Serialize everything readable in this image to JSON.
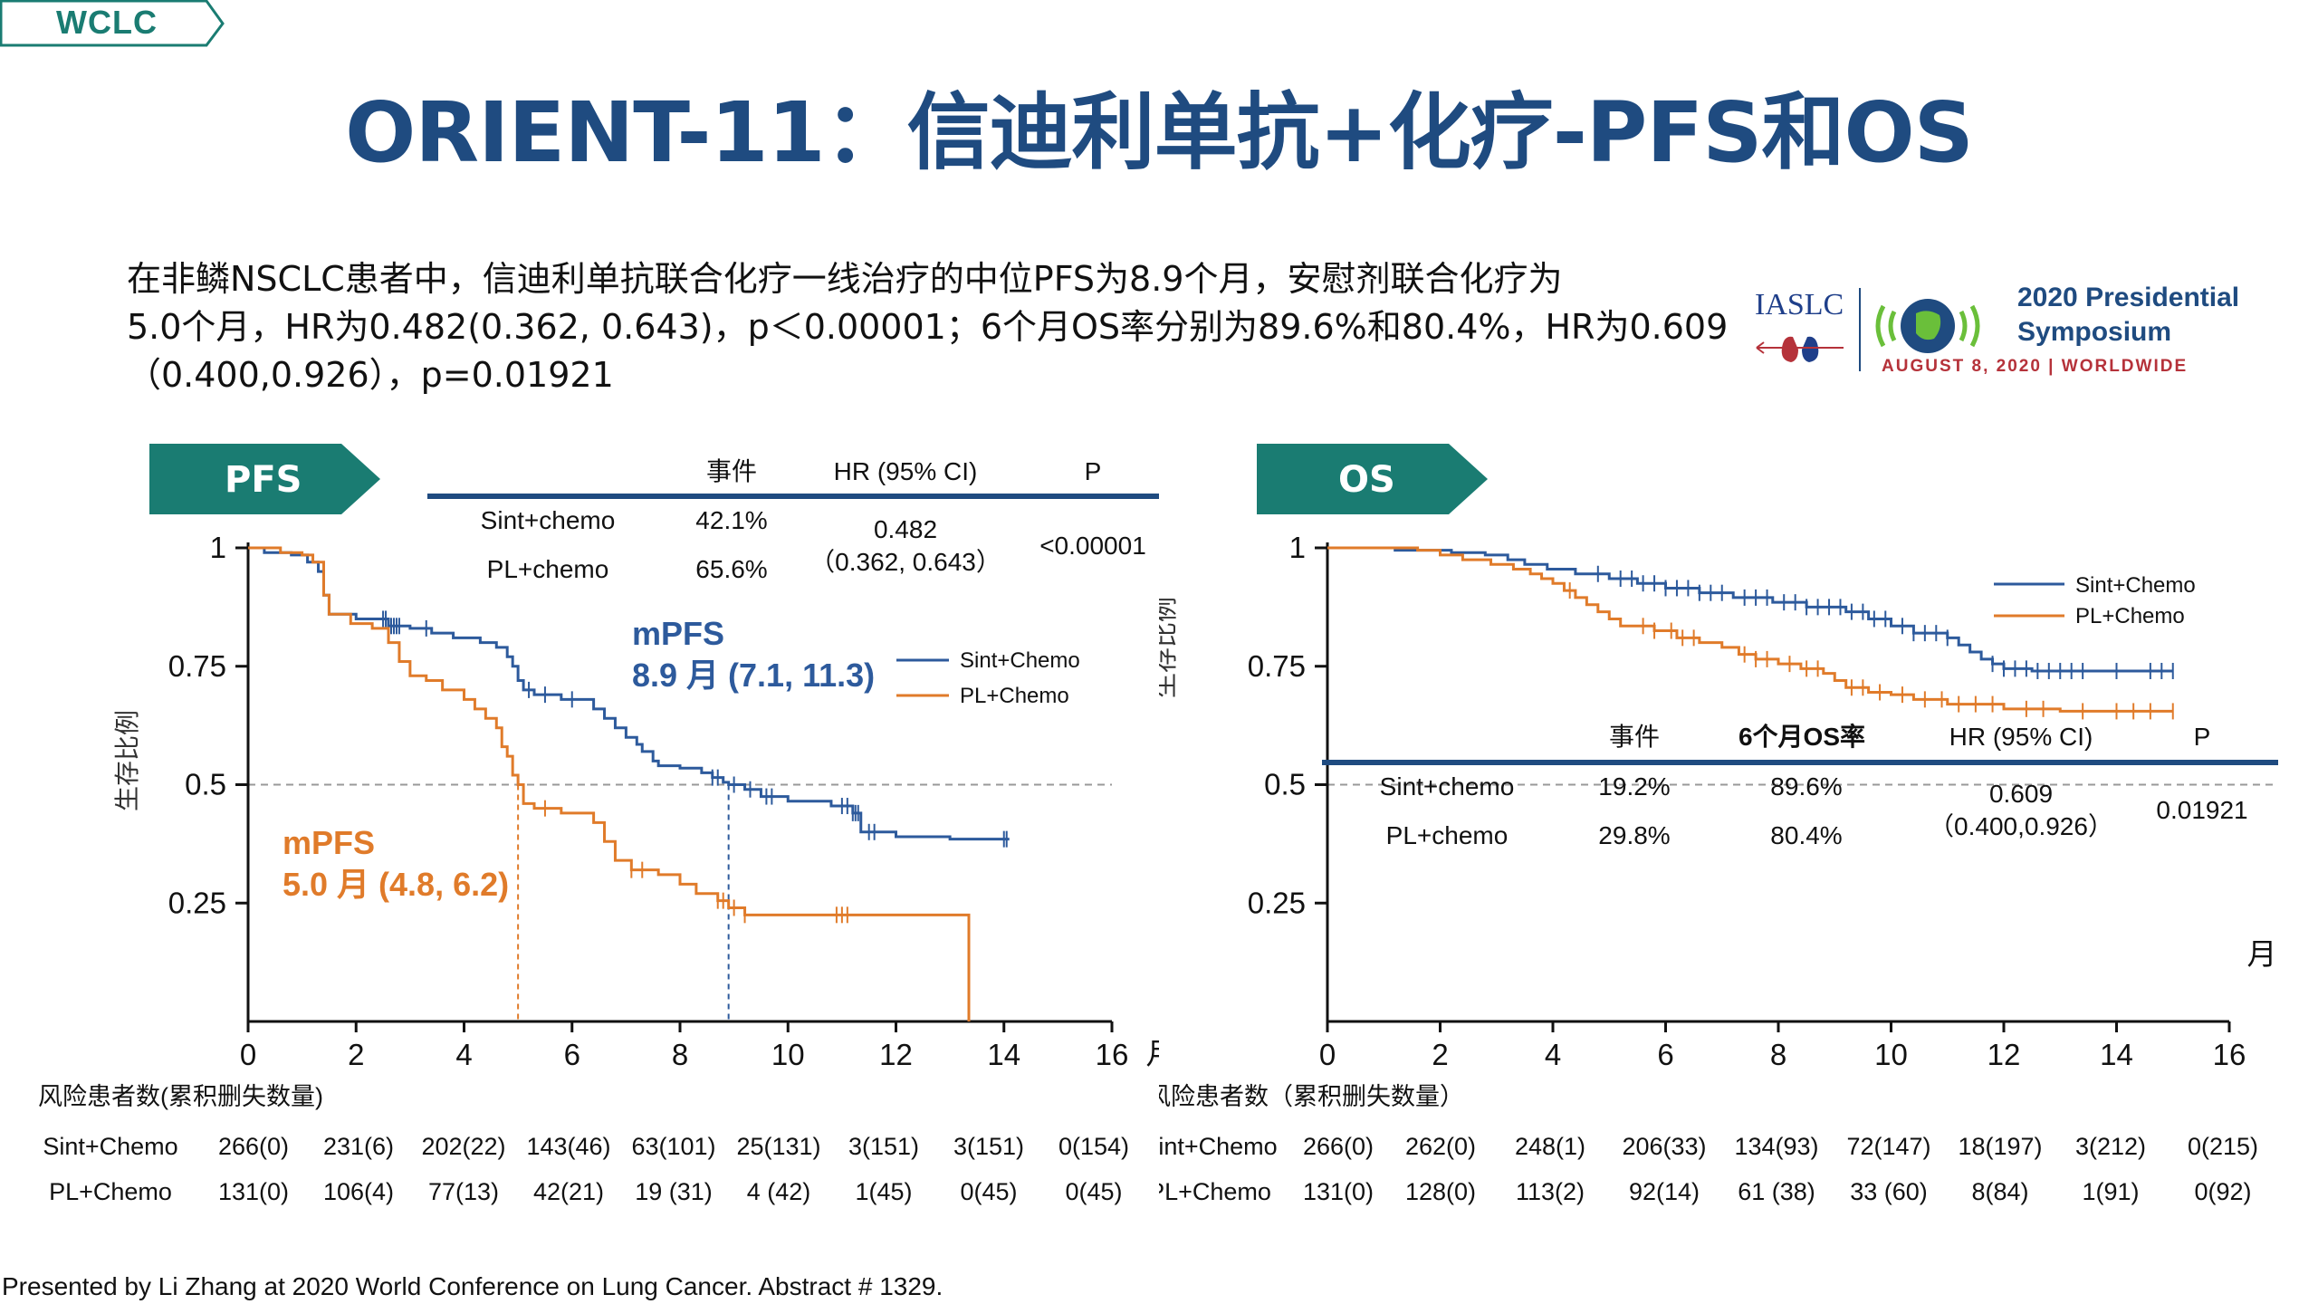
{
  "header": {
    "tag": "WCLC",
    "title": "ORIENT-11：信迪利单抗+化疗-PFS和OS"
  },
  "summary_lines": [
    "在非鳞NSCLC患者中，信迪利单抗联合化疗一线治疗的中位PFS为8.9个月，安慰剂联合化疗为",
    "5.0个月，HR为0.482(0.362, 0.643)，p＜0.00001；6个月OS率分别为89.6%和80.4%，HR为0.609",
    "（0.400,0.926），p=0.01921"
  ],
  "logo": {
    "org": "IASLC",
    "title_line1": "2020 Presidential",
    "title_line2": "Symposium",
    "subtitle": "AUGUST 8, 2020 | WORLDWIDE"
  },
  "footer": "Presented by Li Zhang at 2020 World Conference on Lung Cancer. Abstract # 1329.",
  "colors": {
    "sint": "#2d5a9c",
    "pl": "#e07b2a",
    "teal": "#1a7c72",
    "navy": "#1f4b80"
  },
  "chart_data": [
    {
      "type": "line",
      "panel_label": "PFS",
      "ylabel": "生存比例",
      "x_unit": "月",
      "xlim": [
        0,
        16
      ],
      "ylim": [
        0,
        1
      ],
      "x_ticks": [
        "0",
        "2",
        "4",
        "6",
        "8",
        "10",
        "12",
        "14",
        "16"
      ],
      "y_ticks": [
        "1",
        "0.75",
        "0.5",
        "0.25"
      ],
      "y_tick_values": [
        1,
        0.75,
        0.5,
        0.25
      ],
      "median_line": 0.5,
      "table": {
        "headers": [
          "事件",
          "HR (95% CI)",
          "P"
        ],
        "rows": [
          {
            "arm": "Sint+chemo",
            "events": "42.1%"
          },
          {
            "arm": "PL+chemo",
            "events": "65.6%"
          }
        ],
        "hr": "0.482",
        "ci": "（0.362, 0.643）",
        "p": "<0.00001"
      },
      "annotations": {
        "sint_title": "mPFS",
        "sint_value": "8.9 月 (7.1, 11.3)",
        "pl_title": "mPFS",
        "pl_value": "5.0 月 (4.8, 6.2)"
      },
      "medians": {
        "sint": 8.9,
        "pl": 5.0
      },
      "legend": [
        "Sint+Chemo",
        "PL+Chemo"
      ],
      "series": [
        {
          "name": "Sint+Chemo",
          "color": "#2d5a9c",
          "steps": [
            [
              0,
              1
            ],
            [
              0.3,
              0.99
            ],
            [
              0.8,
              0.985
            ],
            [
              1.1,
              0.97
            ],
            [
              1.3,
              0.95
            ],
            [
              1.4,
              0.9
            ],
            [
              1.5,
              0.86
            ],
            [
              2.0,
              0.85
            ],
            [
              2.6,
              0.835
            ],
            [
              3.0,
              0.83
            ],
            [
              3.4,
              0.82
            ],
            [
              3.8,
              0.81
            ],
            [
              4.3,
              0.8
            ],
            [
              4.6,
              0.79
            ],
            [
              4.8,
              0.77
            ],
            [
              4.9,
              0.75
            ],
            [
              5.0,
              0.72
            ],
            [
              5.1,
              0.7
            ],
            [
              5.3,
              0.69
            ],
            [
              5.8,
              0.68
            ],
            [
              6.4,
              0.66
            ],
            [
              6.6,
              0.64
            ],
            [
              6.8,
              0.62
            ],
            [
              7.0,
              0.6
            ],
            [
              7.2,
              0.585
            ],
            [
              7.3,
              0.57
            ],
            [
              7.5,
              0.55
            ],
            [
              7.6,
              0.54
            ],
            [
              8.0,
              0.535
            ],
            [
              8.4,
              0.525
            ],
            [
              8.6,
              0.515
            ],
            [
              8.8,
              0.505
            ],
            [
              8.9,
              0.5
            ],
            [
              9.2,
              0.49
            ],
            [
              9.5,
              0.475
            ],
            [
              10.0,
              0.465
            ],
            [
              10.8,
              0.455
            ],
            [
              11.2,
              0.44
            ],
            [
              11.35,
              0.4
            ],
            [
              12.0,
              0.39
            ],
            [
              13.0,
              0.385
            ],
            [
              14.1,
              0.385
            ]
          ],
          "censors": [
            2.5,
            2.55,
            2.6,
            2.65,
            2.7,
            2.75,
            2.8,
            3.3,
            5.2,
            5.5,
            6.0,
            8.6,
            8.7,
            9.0,
            9.3,
            9.6,
            9.7,
            11.0,
            11.1,
            11.2,
            11.25,
            11.3,
            11.5,
            11.6,
            14.0,
            14.05
          ]
        },
        {
          "name": "PL+Chemo",
          "color": "#e07b2a",
          "steps": [
            [
              0,
              1
            ],
            [
              0.6,
              0.99
            ],
            [
              1.0,
              0.985
            ],
            [
              1.2,
              0.97
            ],
            [
              1.4,
              0.9
            ],
            [
              1.5,
              0.86
            ],
            [
              1.9,
              0.84
            ],
            [
              2.3,
              0.83
            ],
            [
              2.6,
              0.8
            ],
            [
              2.8,
              0.76
            ],
            [
              3.0,
              0.73
            ],
            [
              3.3,
              0.72
            ],
            [
              3.6,
              0.7
            ],
            [
              4.0,
              0.68
            ],
            [
              4.2,
              0.66
            ],
            [
              4.4,
              0.64
            ],
            [
              4.6,
              0.62
            ],
            [
              4.7,
              0.58
            ],
            [
              4.8,
              0.56
            ],
            [
              4.9,
              0.52
            ],
            [
              5.0,
              0.5
            ],
            [
              5.1,
              0.46
            ],
            [
              5.3,
              0.45
            ],
            [
              5.8,
              0.44
            ],
            [
              6.4,
              0.42
            ],
            [
              6.6,
              0.38
            ],
            [
              6.8,
              0.34
            ],
            [
              7.1,
              0.32
            ],
            [
              7.6,
              0.31
            ],
            [
              8.0,
              0.29
            ],
            [
              8.3,
              0.27
            ],
            [
              8.7,
              0.255
            ],
            [
              8.9,
              0.24
            ],
            [
              9.2,
              0.225
            ],
            [
              13.2,
              0.225
            ],
            [
              13.35,
              0.0
            ]
          ],
          "censors": [
            5.5,
            7.1,
            7.3,
            8.7,
            8.8,
            9.0,
            9.2,
            10.9,
            11.0,
            11.1
          ]
        }
      ],
      "risk_table": {
        "title": "风险患者数(累积删失数量)",
        "rows": [
          {
            "arm": "Sint+Chemo",
            "values": [
              "266(0)",
              "231(6)",
              "202(22)",
              "143(46)",
              "63(101)",
              "25(131)",
              "3(151)",
              "3(151)",
              "0(154)"
            ]
          },
          {
            "arm": "PL+Chemo",
            "values": [
              "131(0)",
              "106(4)",
              "77(13)",
              "42(21)",
              "19 (31)",
              "4 (42)",
              "1(45)",
              "0(45)",
              "0(45)"
            ]
          }
        ]
      }
    },
    {
      "type": "line",
      "panel_label": "OS",
      "ylabel": "生存比例",
      "x_unit": "月",
      "xlim": [
        0,
        16
      ],
      "ylim": [
        0,
        1
      ],
      "x_ticks": [
        "0",
        "2",
        "4",
        "6",
        "8",
        "10",
        "12",
        "14",
        "16"
      ],
      "y_ticks": [
        "1",
        "0.75",
        "0.5",
        "0.25"
      ],
      "y_tick_values": [
        1,
        0.75,
        0.5,
        0.25
      ],
      "median_line": 0.5,
      "table": {
        "headers": [
          "事件",
          "6个月OS率",
          "HR (95% CI)",
          "P"
        ],
        "rows": [
          {
            "arm": "Sint+chemo",
            "events": "19.2%",
            "os6": "89.6%"
          },
          {
            "arm": "PL+chemo",
            "events": "29.8%",
            "os6": "80.4%"
          }
        ],
        "hr": "0.609",
        "ci": "（0.400,0.926）",
        "p": "0.01921"
      },
      "legend": [
        "Sint+Chemo",
        "PL+Chemo"
      ],
      "series": [
        {
          "name": "Sint+Chemo",
          "color": "#2d5a9c",
          "steps": [
            [
              0,
              1
            ],
            [
              1.2,
              0.995
            ],
            [
              2.2,
              0.99
            ],
            [
              2.8,
              0.985
            ],
            [
              3.2,
              0.975
            ],
            [
              3.5,
              0.965
            ],
            [
              3.9,
              0.955
            ],
            [
              4.4,
              0.945
            ],
            [
              5.0,
              0.935
            ],
            [
              5.5,
              0.925
            ],
            [
              6.0,
              0.915
            ],
            [
              6.6,
              0.905
            ],
            [
              7.2,
              0.895
            ],
            [
              7.9,
              0.885
            ],
            [
              8.5,
              0.875
            ],
            [
              9.2,
              0.865
            ],
            [
              9.6,
              0.85
            ],
            [
              10.0,
              0.835
            ],
            [
              10.4,
              0.82
            ],
            [
              11.0,
              0.81
            ],
            [
              11.2,
              0.795
            ],
            [
              11.4,
              0.78
            ],
            [
              11.6,
              0.765
            ],
            [
              11.8,
              0.755
            ],
            [
              12.0,
              0.745
            ],
            [
              12.5,
              0.74
            ],
            [
              15.0,
              0.74
            ]
          ],
          "censors": [
            4.8,
            5.2,
            5.4,
            5.6,
            5.8,
            6.0,
            6.2,
            6.4,
            6.6,
            6.8,
            7.0,
            7.4,
            7.6,
            7.8,
            8.1,
            8.3,
            8.5,
            8.7,
            8.9,
            9.1,
            9.3,
            9.5,
            9.7,
            9.9,
            10.2,
            10.4,
            10.6,
            10.8,
            11.0,
            11.8,
            12.0,
            12.2,
            12.4,
            12.6,
            12.8,
            13.0,
            13.2,
            13.4,
            14.0,
            14.6,
            14.8,
            15.0
          ]
        },
        {
          "name": "PL+Chemo",
          "color": "#e07b2a",
          "steps": [
            [
              0,
              1
            ],
            [
              1.6,
              0.995
            ],
            [
              2.0,
              0.985
            ],
            [
              2.4,
              0.975
            ],
            [
              2.9,
              0.965
            ],
            [
              3.3,
              0.955
            ],
            [
              3.6,
              0.945
            ],
            [
              3.8,
              0.935
            ],
            [
              4.0,
              0.925
            ],
            [
              4.2,
              0.91
            ],
            [
              4.4,
              0.895
            ],
            [
              4.6,
              0.88
            ],
            [
              4.8,
              0.865
            ],
            [
              5.0,
              0.85
            ],
            [
              5.2,
              0.835
            ],
            [
              5.8,
              0.825
            ],
            [
              6.2,
              0.81
            ],
            [
              6.6,
              0.8
            ],
            [
              7.0,
              0.79
            ],
            [
              7.3,
              0.775
            ],
            [
              7.6,
              0.765
            ],
            [
              8.0,
              0.755
            ],
            [
              8.4,
              0.745
            ],
            [
              8.8,
              0.735
            ],
            [
              9.0,
              0.72
            ],
            [
              9.2,
              0.705
            ],
            [
              9.6,
              0.695
            ],
            [
              10.0,
              0.69
            ],
            [
              10.4,
              0.68
            ],
            [
              11.0,
              0.67
            ],
            [
              12.0,
              0.66
            ],
            [
              13.0,
              0.655
            ],
            [
              15.0,
              0.655
            ]
          ],
          "censors": [
            4.3,
            5.6,
            5.8,
            6.1,
            6.3,
            6.5,
            7.4,
            7.6,
            7.8,
            8.2,
            8.5,
            8.7,
            9.3,
            9.5,
            9.8,
            10.2,
            10.6,
            10.9,
            11.2,
            11.5,
            11.8,
            12.4,
            12.7,
            13.4,
            14.0,
            14.3,
            14.6,
            15.0
          ]
        }
      ],
      "risk_table": {
        "title": "风险患者数（累积删失数量）",
        "rows": [
          {
            "arm": "Sint+Chemo",
            "values": [
              "266(0)",
              "262(0)",
              "248(1)",
              "206(33)",
              "134(93)",
              "72(147)",
              "18(197)",
              "3(212)",
              "0(215)"
            ]
          },
          {
            "arm": "PL+Chemo",
            "values": [
              "131(0)",
              "128(0)",
              "113(2)",
              "92(14)",
              "61 (38)",
              "33 (60)",
              "8(84)",
              "1(91)",
              "0(92)"
            ]
          }
        ]
      }
    }
  ]
}
